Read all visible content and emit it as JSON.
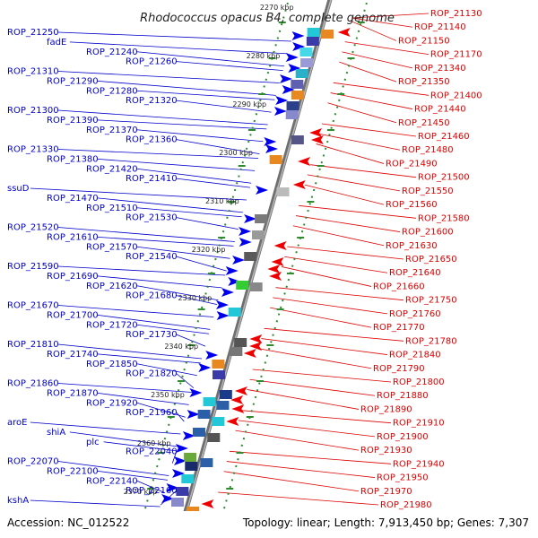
{
  "title": "Rhodococcus opacus B4, complete genome",
  "footer": {
    "accession": "Accession: NC_012522",
    "summary": "Topology: linear; Length: 7,913,450 bp; Genes: 7,307"
  },
  "colors": {
    "left_labels": "#0000cc",
    "right_labels": "#dd0000",
    "forward_genes": "#0000ee",
    "reverse_genes": "#ee0000",
    "backbone": "#8a8a8a",
    "dotted_track": "#2e8b2e"
  },
  "scale_marks": [
    "2270 kbp",
    "2280 kbp",
    "2290 kbp",
    "2300 kbp",
    "2310 kbp",
    "2320 kbp",
    "2330 kbp",
    "2340 kbp",
    "2350 kbp",
    "2360 kbp",
    "2370 kbp"
  ],
  "left_labels": [
    "ROP_21250",
    "fadE",
    "ROP_21240",
    "ROP_21260",
    "ROP_21310",
    "ROP_21290",
    "ROP_21280",
    "ROP_21320",
    "ROP_21300",
    "ROP_21390",
    "ROP_21370",
    "ROP_21360",
    "ROP_21330",
    "ROP_21380",
    "ROP_21420",
    "ROP_21410",
    "ssuD",
    "ROP_21470",
    "ROP_21510",
    "ROP_21530",
    "ROP_21520",
    "ROP_21610",
    "ROP_21570",
    "ROP_21540",
    "ROP_21590",
    "ROP_21690",
    "ROP_21620",
    "ROP_21680",
    "ROP_21670",
    "ROP_21700",
    "ROP_21720",
    "ROP_21730",
    "ROP_21810",
    "ROP_21740",
    "ROP_21850",
    "ROP_21820",
    "ROP_21860",
    "ROP_21870",
    "ROP_21920",
    "ROP_21960",
    "aroE",
    "shiA",
    "plc",
    "ROP_22040",
    "ROP_22070",
    "ROP_22100",
    "ROP_22140",
    "ROP_22160",
    "kshA"
  ],
  "right_labels": [
    "ROP_21130",
    "ROP_21140",
    "ROP_21150",
    "ROP_21170",
    "ROP_21340",
    "ROP_21350",
    "ROP_21400",
    "ROP_21440",
    "ROP_21450",
    "ROP_21460",
    "ROP_21480",
    "ROP_21490",
    "ROP_21500",
    "ROP_21550",
    "ROP_21560",
    "ROP_21580",
    "ROP_21600",
    "ROP_21630",
    "ROP_21650",
    "ROP_21640",
    "ROP_21660",
    "ROP_21750",
    "ROP_21760",
    "ROP_21770",
    "ROP_21780",
    "ROP_21840",
    "ROP_21790",
    "ROP_21800",
    "ROP_21880",
    "ROP_21890",
    "ROP_21910",
    "ROP_21900",
    "ROP_21930",
    "ROP_21940",
    "ROP_21950",
    "ROP_21970",
    "ROP_21980"
  ]
}
